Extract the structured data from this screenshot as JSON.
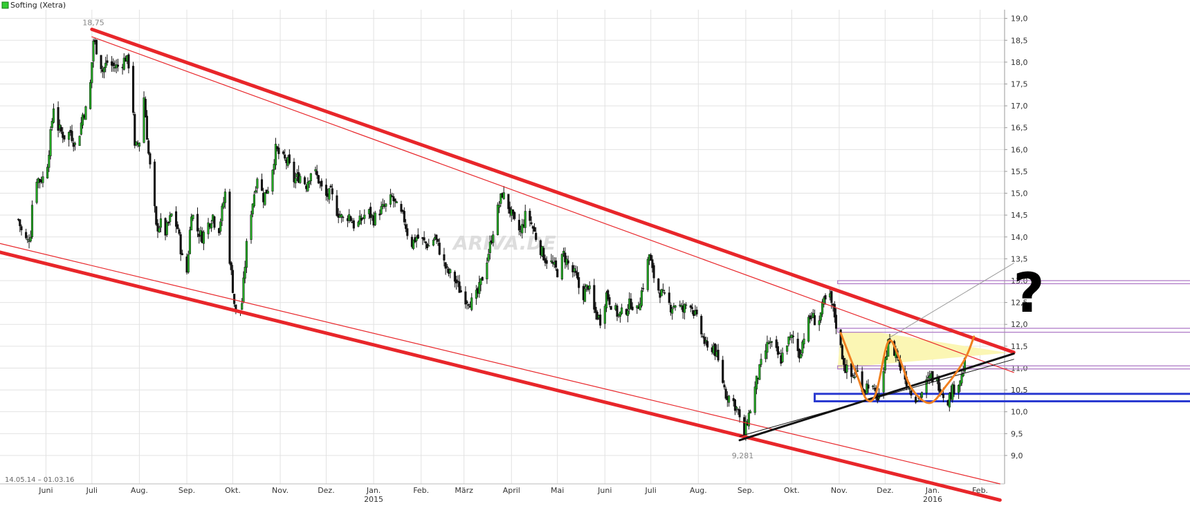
{
  "chart_data": {
    "type": "candlestick",
    "title": "Softing (Xetra)",
    "date_range_label": "14.05.14 – 01.03.16",
    "watermark": "ARIVA.DE",
    "y_ticks": [
      "19,0",
      "18,5",
      "18,0",
      "17,5",
      "17,0",
      "16,5",
      "16,0",
      "15,5",
      "15,0",
      "14,5",
      "14,0",
      "13,5",
      "13,0",
      "12,5",
      "12,0",
      "11,5",
      "11,0",
      "10,5",
      "10,0",
      "9,5",
      "9,0"
    ],
    "y_tick_values": [
      19.0,
      18.5,
      18.0,
      17.5,
      17.0,
      16.5,
      16.0,
      15.5,
      15.0,
      14.5,
      14.0,
      13.5,
      13.0,
      12.5,
      12.0,
      11.5,
      11.0,
      10.5,
      10.0,
      9.5,
      9.0
    ],
    "ylim": [
      8.35,
      19.2
    ],
    "x_range_days": [
      -12,
      644
    ],
    "x_ticks": [
      {
        "label": "Juni",
        "day": 18
      },
      {
        "label": "Juli",
        "day": 48
      },
      {
        "label": "Aug.",
        "day": 79
      },
      {
        "label": "Sep.",
        "day": 110
      },
      {
        "label": "Okt.",
        "day": 140
      },
      {
        "label": "Nov.",
        "day": 171
      },
      {
        "label": "Dez.",
        "day": 201
      },
      {
        "label": "Jan.",
        "day": 232
      },
      {
        "label": "Feb.",
        "day": 263
      },
      {
        "label": "März",
        "day": 291
      },
      {
        "label": "April",
        "day": 322
      },
      {
        "label": "Mai",
        "day": 352
      },
      {
        "label": "Juni",
        "day": 383
      },
      {
        "label": "Juli",
        "day": 413
      },
      {
        "label": "Aug.",
        "day": 444
      },
      {
        "label": "Sep.",
        "day": 475
      },
      {
        "label": "Okt.",
        "day": 505
      },
      {
        "label": "Nov.",
        "day": 536
      },
      {
        "label": "Dez.",
        "day": 566
      },
      {
        "label": "Jan.",
        "day": 597
      },
      {
        "label": "Feb.",
        "day": 628
      }
    ],
    "year_labels": [
      {
        "label": "2015",
        "day": 232
      },
      {
        "label": "2016",
        "day": 597
      }
    ],
    "close_path": [
      [
        0,
        14.4
      ],
      [
        3,
        14.0
      ],
      [
        6,
        13.9
      ],
      [
        8,
        14.1
      ],
      [
        10,
        15.4
      ],
      [
        14,
        15.3
      ],
      [
        18,
        15.4
      ],
      [
        20,
        16.0
      ],
      [
        23,
        17.0
      ],
      [
        26,
        16.5
      ],
      [
        30,
        16.3
      ],
      [
        34,
        16.4
      ],
      [
        38,
        16.0
      ],
      [
        42,
        16.8
      ],
      [
        46,
        17.0
      ],
      [
        49,
        18.5
      ],
      [
        52,
        18.2
      ],
      [
        55,
        17.8
      ],
      [
        58,
        18.0
      ],
      [
        62,
        17.9
      ],
      [
        66,
        17.9
      ],
      [
        70,
        18.1
      ],
      [
        74,
        17.8
      ],
      [
        76,
        16.0
      ],
      [
        79,
        16.2
      ],
      [
        82,
        17.2
      ],
      [
        85,
        15.9
      ],
      [
        88,
        15.0
      ],
      [
        90,
        14.2
      ],
      [
        93,
        14.3
      ],
      [
        96,
        14.1
      ],
      [
        100,
        14.5
      ],
      [
        104,
        14.2
      ],
      [
        107,
        13.5
      ],
      [
        110,
        13.2
      ],
      [
        113,
        14.6
      ],
      [
        116,
        14.2
      ],
      [
        120,
        14.0
      ],
      [
        124,
        14.3
      ],
      [
        127,
        14.5
      ],
      [
        130,
        14.0
      ],
      [
        133,
        14.6
      ],
      [
        136,
        15.2
      ],
      [
        138,
        13.5
      ],
      [
        141,
        12.5
      ],
      [
        143,
        12.0
      ],
      [
        146,
        12.5
      ],
      [
        149,
        13.8
      ],
      [
        152,
        14.6
      ],
      [
        156,
        15.4
      ],
      [
        160,
        14.9
      ],
      [
        164,
        15.2
      ],
      [
        168,
        16.0
      ],
      [
        172,
        15.8
      ],
      [
        176,
        15.7
      ],
      [
        180,
        15.3
      ],
      [
        184,
        15.4
      ],
      [
        188,
        15.2
      ],
      [
        192,
        15.6
      ],
      [
        196,
        15.3
      ],
      [
        200,
        14.9
      ],
      [
        204,
        15.0
      ],
      [
        208,
        14.6
      ],
      [
        212,
        14.4
      ],
      [
        216,
        14.5
      ],
      [
        220,
        14.2
      ],
      [
        224,
        14.4
      ],
      [
        228,
        14.6
      ],
      [
        232,
        14.4
      ],
      [
        236,
        14.6
      ],
      [
        240,
        14.7
      ],
      [
        244,
        14.9
      ],
      [
        248,
        14.6
      ],
      [
        252,
        14.4
      ],
      [
        256,
        13.8
      ],
      [
        260,
        14.0
      ],
      [
        264,
        13.9
      ],
      [
        268,
        13.8
      ],
      [
        272,
        14.0
      ],
      [
        276,
        13.6
      ],
      [
        280,
        13.2
      ],
      [
        284,
        13.1
      ],
      [
        288,
        12.8
      ],
      [
        292,
        12.6
      ],
      [
        296,
        12.5
      ],
      [
        300,
        12.7
      ],
      [
        304,
        13.2
      ],
      [
        308,
        13.8
      ],
      [
        312,
        14.5
      ],
      [
        316,
        15.0
      ],
      [
        320,
        14.7
      ],
      [
        324,
        14.3
      ],
      [
        328,
        14.1
      ],
      [
        332,
        14.6
      ],
      [
        336,
        14.2
      ],
      [
        340,
        13.8
      ],
      [
        344,
        13.5
      ],
      [
        348,
        13.4
      ],
      [
        352,
        13.2
      ],
      [
        356,
        13.6
      ],
      [
        360,
        13.3
      ],
      [
        364,
        13.1
      ],
      [
        368,
        12.6
      ],
      [
        372,
        12.9
      ],
      [
        376,
        12.3
      ],
      [
        380,
        12.1
      ],
      [
        384,
        12.7
      ],
      [
        388,
        12.4
      ],
      [
        392,
        12.2
      ],
      [
        396,
        12.3
      ],
      [
        400,
        12.5
      ],
      [
        404,
        12.3
      ],
      [
        408,
        12.9
      ],
      [
        412,
        13.6
      ],
      [
        414,
        13.2
      ],
      [
        418,
        12.8
      ],
      [
        422,
        12.6
      ],
      [
        426,
        12.4
      ],
      [
        430,
        12.5
      ],
      [
        434,
        12.3
      ],
      [
        438,
        12.6
      ],
      [
        442,
        12.2
      ],
      [
        446,
        11.8
      ],
      [
        450,
        11.4
      ],
      [
        454,
        11.5
      ],
      [
        458,
        11.0
      ],
      [
        462,
        10.4
      ],
      [
        466,
        10.3
      ],
      [
        470,
        10.0
      ],
      [
        473,
        9.35
      ],
      [
        476,
        9.8
      ],
      [
        479,
        10.2
      ],
      [
        482,
        10.7
      ],
      [
        486,
        11.2
      ],
      [
        490,
        11.6
      ],
      [
        494,
        11.4
      ],
      [
        498,
        11.2
      ],
      [
        502,
        11.6
      ],
      [
        506,
        11.7
      ],
      [
        510,
        11.3
      ],
      [
        514,
        11.9
      ],
      [
        518,
        12.2
      ],
      [
        522,
        12.0
      ],
      [
        526,
        12.5
      ],
      [
        530,
        12.6
      ],
      [
        533,
        12.2
      ],
      [
        536,
        11.6
      ],
      [
        540,
        11.0
      ],
      [
        544,
        10.8
      ],
      [
        548,
        10.9
      ],
      [
        552,
        10.5
      ],
      [
        556,
        10.7
      ],
      [
        560,
        10.3
      ],
      [
        564,
        10.5
      ],
      [
        568,
        11.7
      ],
      [
        570,
        11.3
      ],
      [
        573,
        11.4
      ],
      [
        576,
        11.0
      ],
      [
        580,
        10.7
      ],
      [
        584,
        10.4
      ],
      [
        588,
        10.3
      ],
      [
        592,
        10.6
      ],
      [
        596,
        10.8
      ],
      [
        600,
        10.7
      ],
      [
        604,
        10.4
      ],
      [
        606,
        10.2
      ],
      [
        610,
        10.5
      ],
      [
        614,
        10.7
      ],
      [
        616,
        10.8
      ],
      [
        618,
        11.1
      ],
      [
        620,
        11.6
      ]
    ],
    "labeled_points": [
      {
        "label": "18,75",
        "day": 49,
        "value": 18.75
      },
      {
        "label": "9,281",
        "day": 473,
        "value": 9.281
      }
    ],
    "annotations": {
      "channel_upper_thick": [
        [
          48,
          18.75
        ],
        [
          650,
          11.36
        ]
      ],
      "channel_upper_thin": [
        [
          48,
          18.58
        ],
        [
          650,
          10.9
        ]
      ],
      "channel_lower_thick": [
        [
          -12,
          13.65
        ],
        [
          641,
          7.98
        ]
      ],
      "channel_lower_thin": [
        [
          -12,
          13.85
        ],
        [
          641,
          8.35
        ]
      ],
      "uptrend_thick": [
        [
          471,
          9.35
        ],
        [
          650,
          11.33
        ]
      ],
      "uptrend_thin": [
        [
          471,
          9.44
        ],
        [
          650,
          11.2
        ]
      ],
      "uptrend_grey": [
        [
          569,
          11.7
        ],
        [
          650,
          13.4
        ]
      ],
      "resistance_box_top": [
        535,
        13.0,
        12.93
      ],
      "resistance_box_mid": [
        535,
        11.91,
        11.82
      ],
      "resistance_box_low": [
        535,
        11.05,
        10.98
      ],
      "support_box_blue": [
        520,
        10.41,
        10.24
      ],
      "triangle_yellow": [
        [
          537,
          11.82
        ],
        [
          561,
          11.82
        ],
        [
          646,
          11.35
        ],
        [
          535,
          11.0
        ]
      ],
      "w_pattern": [
        [
          537,
          11.8
        ],
        [
          548,
          10.8
        ],
        [
          554,
          10.28
        ],
        [
          560,
          10.42
        ],
        [
          568,
          11.6
        ],
        [
          575,
          11.25
        ],
        [
          583,
          10.55
        ],
        [
          595,
          10.2
        ],
        [
          606,
          10.6
        ],
        [
          618,
          11.2
        ],
        [
          624,
          11.72
        ]
      ],
      "question_mark": "?"
    },
    "colors": {
      "up_candle": "#22aa22",
      "down_candle": "#111111",
      "channel": "#e8262a",
      "trend": "#111111",
      "support_box": "#2a3ad0",
      "resistance_box": "#b07cc8",
      "triangle_fill": "#fbf6b4",
      "w_pattern": "#f08020",
      "grid": "#e2e2e2"
    }
  }
}
